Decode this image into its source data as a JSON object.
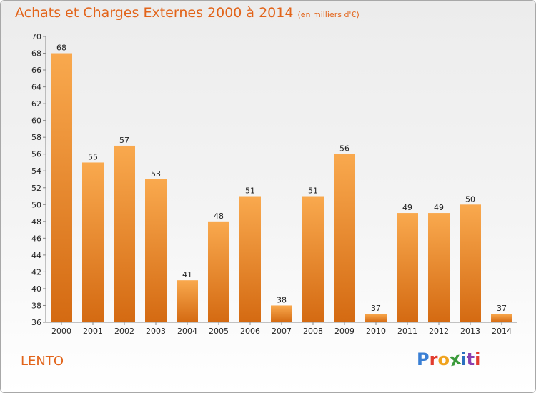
{
  "title": "Achats et Charges Externes 2000 à 2014",
  "subtitle": "(en milliers d'€)",
  "place": "LENTO",
  "logo": {
    "letters": [
      "P",
      "r",
      "o",
      "x",
      "i",
      "t",
      "i"
    ],
    "colors": [
      "#3a7fd4",
      "#e23b2e",
      "#f0a21d",
      "#3a9a3a",
      "#2b6fbf",
      "#8a3fb0",
      "#e23b2e"
    ]
  },
  "colors": {
    "bar_top": "#f9a94e",
    "bar_bottom": "#d46a12",
    "accent": "#e2641a"
  },
  "chart_data": {
    "type": "bar",
    "title": "Achats et Charges Externes 2000 à 2014",
    "subtitle": "(en milliers d'€)",
    "xlabel": "",
    "ylabel": "",
    "categories": [
      "2000",
      "2001",
      "2002",
      "2003",
      "2004",
      "2005",
      "2006",
      "2007",
      "2008",
      "2009",
      "2010",
      "2011",
      "2012",
      "2013",
      "2014"
    ],
    "values": [
      68,
      55,
      57,
      53,
      41,
      48,
      51,
      38,
      51,
      56,
      37,
      49,
      49,
      50,
      37
    ],
    "ylim": [
      36,
      70
    ],
    "yticks": [
      36,
      38,
      40,
      42,
      44,
      46,
      48,
      50,
      52,
      54,
      56,
      58,
      60,
      62,
      64,
      66,
      68,
      70
    ],
    "grid": false,
    "legend": "none"
  }
}
